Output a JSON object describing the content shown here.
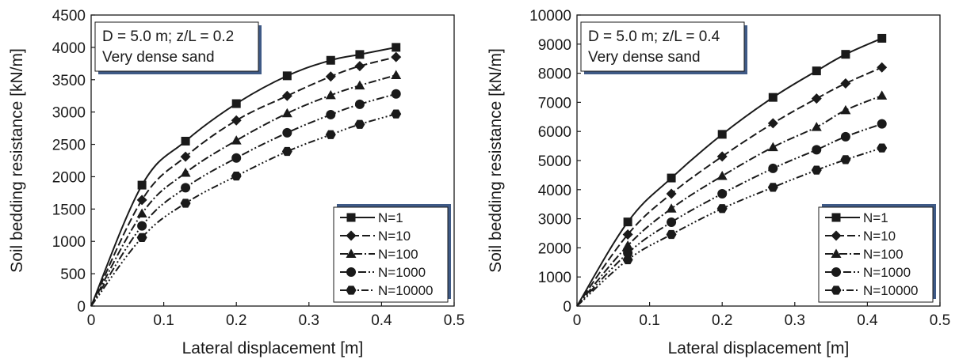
{
  "chart_data": [
    {
      "type": "line",
      "annotation": [
        "D = 5.0 m; z/L = 0.2",
        "Very dense sand"
      ],
      "xlabel": "Lateral displacement [m]",
      "ylabel": "Soil bedding resistance [kN/m]",
      "xlim": [
        0,
        0.5
      ],
      "ylim": [
        0,
        4500
      ],
      "xticks": [
        "0",
        "0.1",
        "0.2",
        "0.3",
        "0.4",
        "0.5"
      ],
      "yticks": [
        "0",
        "500",
        "1000",
        "1500",
        "2000",
        "2500",
        "3000",
        "3500",
        "4000",
        "4500"
      ],
      "grid": false,
      "legend_position": "bottom-right",
      "x": [
        0,
        0.07,
        0.13,
        0.2,
        0.27,
        0.33,
        0.37,
        0.42
      ],
      "series": [
        {
          "name": "N=1",
          "marker": "square",
          "dash": "solid",
          "values": [
            0,
            1870,
            2550,
            3130,
            3560,
            3800,
            3890,
            4000
          ]
        },
        {
          "name": "N=10",
          "marker": "diamond",
          "dash": "dash",
          "values": [
            0,
            1640,
            2310,
            2870,
            3250,
            3550,
            3710,
            3850
          ]
        },
        {
          "name": "N=100",
          "marker": "triangle",
          "dash": "dashdot",
          "values": [
            0,
            1430,
            2060,
            2560,
            2980,
            3260,
            3410,
            3570
          ]
        },
        {
          "name": "N=1000",
          "marker": "circle",
          "dash": "dashdotdot",
          "values": [
            0,
            1240,
            1830,
            2290,
            2680,
            2960,
            3120,
            3280
          ]
        },
        {
          "name": "N=10000",
          "marker": "hexagon",
          "dash": "dashdotdotdot",
          "values": [
            0,
            1060,
            1590,
            2010,
            2390,
            2650,
            2810,
            2970
          ]
        }
      ]
    },
    {
      "type": "line",
      "annotation": [
        "D = 5.0 m; z/L = 0.4",
        "Very dense sand"
      ],
      "xlabel": "Lateral displacement [m]",
      "ylabel": "Soil bedding resistance [kN/m]",
      "xlim": [
        0,
        0.5
      ],
      "ylim": [
        0,
        10000
      ],
      "xticks": [
        "0",
        "0.1",
        "0.2",
        "0.3",
        "0.4",
        "0.5"
      ],
      "yticks": [
        "0",
        "1000",
        "2000",
        "3000",
        "4000",
        "5000",
        "6000",
        "7000",
        "8000",
        "9000",
        "10000"
      ],
      "grid": false,
      "legend_position": "bottom-right",
      "x": [
        0,
        0.07,
        0.13,
        0.2,
        0.27,
        0.33,
        0.37,
        0.42
      ],
      "series": [
        {
          "name": "N=1",
          "marker": "square",
          "dash": "solid",
          "values": [
            0,
            2890,
            4400,
            5900,
            7170,
            8080,
            8650,
            9200
          ]
        },
        {
          "name": "N=10",
          "marker": "diamond",
          "dash": "dash",
          "values": [
            0,
            2460,
            3860,
            5140,
            6280,
            7130,
            7650,
            8200
          ]
        },
        {
          "name": "N=100",
          "marker": "triangle",
          "dash": "dashdot",
          "values": [
            0,
            2080,
            3350,
            4470,
            5460,
            6150,
            6730,
            7230
          ]
        },
        {
          "name": "N=1000",
          "marker": "circle",
          "dash": "dashdotdot",
          "values": [
            0,
            1820,
            2880,
            3860,
            4730,
            5370,
            5820,
            6260
          ]
        },
        {
          "name": "N=10000",
          "marker": "hexagon",
          "dash": "dashdotdotdot",
          "values": [
            0,
            1590,
            2460,
            3350,
            4080,
            4670,
            5030,
            5430
          ]
        }
      ]
    }
  ],
  "colors": {
    "line": "#1a1a1a",
    "shadow": "#3f5a86",
    "background": "#ffffff"
  }
}
